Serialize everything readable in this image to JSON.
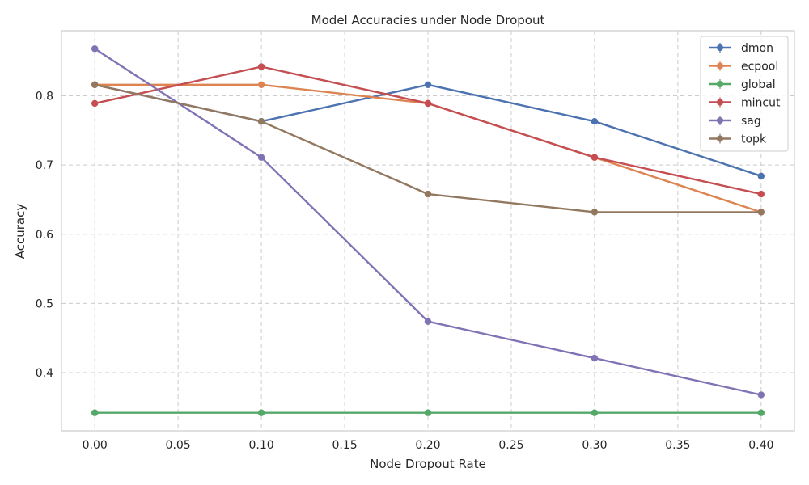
{
  "chart_data": {
    "type": "line",
    "title": "Model Accuracies under Node Dropout",
    "xlabel": "Node Dropout Rate",
    "ylabel": "Accuracy",
    "x": [
      0.0,
      0.1,
      0.2,
      0.3,
      0.4
    ],
    "xlim": [
      -0.02,
      0.42
    ],
    "ylim": [
      0.316,
      0.894
    ],
    "xticks": [
      0.0,
      0.05,
      0.1,
      0.15,
      0.2,
      0.25,
      0.3,
      0.35,
      0.4
    ],
    "xtick_labels": [
      "0.00",
      "0.05",
      "0.10",
      "0.15",
      "0.20",
      "0.25",
      "0.30",
      "0.35",
      "0.40"
    ],
    "yticks": [
      0.4,
      0.5,
      0.6,
      0.7,
      0.8
    ],
    "ytick_labels": [
      "0.4",
      "0.5",
      "0.6",
      "0.7",
      "0.8"
    ],
    "grid": true,
    "legend_position": "top-right",
    "series": [
      {
        "name": "dmon",
        "color": "#4C72B0",
        "values": [
          0.816,
          0.763,
          0.816,
          0.763,
          0.684
        ]
      },
      {
        "name": "ecpool",
        "color": "#DD8452",
        "values": [
          0.816,
          0.816,
          0.789,
          0.711,
          0.632
        ]
      },
      {
        "name": "global",
        "color": "#55A868",
        "values": [
          0.342,
          0.342,
          0.342,
          0.342,
          0.342
        ]
      },
      {
        "name": "mincut",
        "color": "#C44E52",
        "values": [
          0.789,
          0.842,
          0.789,
          0.711,
          0.658
        ]
      },
      {
        "name": "sag",
        "color": "#8172B3",
        "values": [
          0.868,
          0.711,
          0.474,
          0.421,
          0.368
        ]
      },
      {
        "name": "topk",
        "color": "#937860",
        "values": [
          0.816,
          0.763,
          0.658,
          0.632,
          0.632
        ]
      }
    ]
  }
}
